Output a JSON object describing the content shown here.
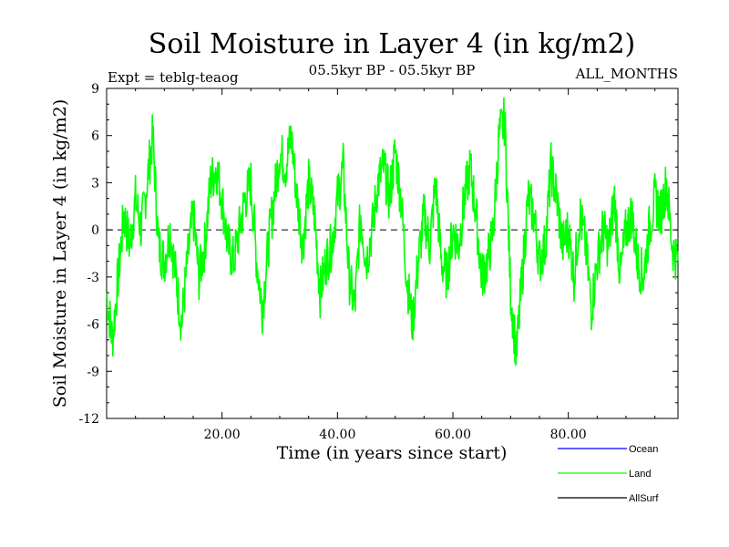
{
  "chart_data": {
    "type": "line",
    "title": "Soil Moisture in Layer 4 (in kg/m2)",
    "subtitle_left": "Expt = teblg-teaog",
    "subtitle_center": "05.5kyr BP - 05.5kyr BP",
    "subtitle_right": "ALL_MONTHS",
    "xlabel": "Time (in years since start)",
    "ylabel": "Soil Moisture in Layer 4 (in kg/m2)",
    "xlim": [
      0,
      99
    ],
    "ylim": [
      -12,
      9
    ],
    "x_ticks": [
      {
        "value": 20,
        "label": "20.00"
      },
      {
        "value": 40,
        "label": "40.00"
      },
      {
        "value": 60,
        "label": "60.00"
      },
      {
        "value": 80,
        "label": "80.00"
      }
    ],
    "y_ticks": [
      {
        "value": 9,
        "label": "9"
      },
      {
        "value": 6,
        "label": "6"
      },
      {
        "value": 3,
        "label": "3"
      },
      {
        "value": 0,
        "label": "0"
      },
      {
        "value": -3,
        "label": "-3"
      },
      {
        "value": -6,
        "label": "-6"
      },
      {
        "value": -9,
        "label": "-9"
      },
      {
        "value": -12,
        "label": "-12"
      }
    ],
    "reference_line": 0,
    "series": [
      {
        "name": "Land",
        "color": "#00ff00",
        "x": [
          0,
          1,
          2,
          3,
          4,
          5,
          6,
          7,
          8,
          9,
          10,
          11,
          12,
          13,
          14,
          15,
          16,
          17,
          18,
          19,
          20,
          21,
          22,
          23,
          24,
          25,
          26,
          27,
          28,
          29,
          30,
          31,
          32,
          33,
          34,
          35,
          36,
          37,
          38,
          39,
          40,
          41,
          42,
          43,
          44,
          45,
          46,
          47,
          48,
          49,
          50,
          51,
          52,
          53,
          54,
          55,
          56,
          57,
          58,
          59,
          60,
          61,
          62,
          63,
          64,
          65,
          66,
          67,
          68,
          69,
          70,
          71,
          72,
          73,
          74,
          75,
          76,
          77,
          78,
          79,
          80,
          81,
          82,
          83,
          84,
          85,
          86,
          87,
          88,
          89,
          90,
          91,
          92,
          93,
          94,
          95,
          96,
          97,
          98,
          99
        ],
        "values": [
          -4,
          -7,
          -3,
          1,
          -1,
          2,
          0,
          3,
          6,
          -1,
          -2,
          0,
          -3,
          -6,
          -2,
          1,
          -3,
          -1,
          3,
          4,
          2,
          -1,
          -2,
          0,
          2,
          3,
          -2,
          -5,
          -1,
          2,
          5,
          4,
          6,
          2,
          -1,
          3,
          1,
          -4,
          -2,
          -1,
          2,
          4,
          -3,
          -5,
          1,
          -2,
          0,
          3,
          4,
          2,
          5,
          2,
          -3,
          -6,
          -2,
          1,
          -1,
          3,
          -2,
          -3,
          0,
          -1,
          2,
          4,
          1,
          -3,
          -2,
          0,
          6,
          7,
          -4,
          -8,
          -3,
          2,
          1,
          -2,
          -1,
          4,
          2,
          -1,
          0,
          -3,
          1,
          -1,
          -5,
          -2,
          0,
          -1,
          2,
          -3,
          0,
          1,
          -2,
          -3,
          0,
          2,
          1,
          3,
          -1,
          -2
        ]
      },
      {
        "name": "Ocean",
        "color": "#0000ff",
        "values": []
      },
      {
        "name": "AllSurf",
        "color": "#000000",
        "values": []
      }
    ]
  },
  "legend": {
    "items": [
      {
        "label": "Ocean",
        "color": "#0000ff"
      },
      {
        "label": "Land",
        "color": "#00ff00"
      },
      {
        "label": "AllSurf",
        "color": "#000000"
      }
    ]
  }
}
